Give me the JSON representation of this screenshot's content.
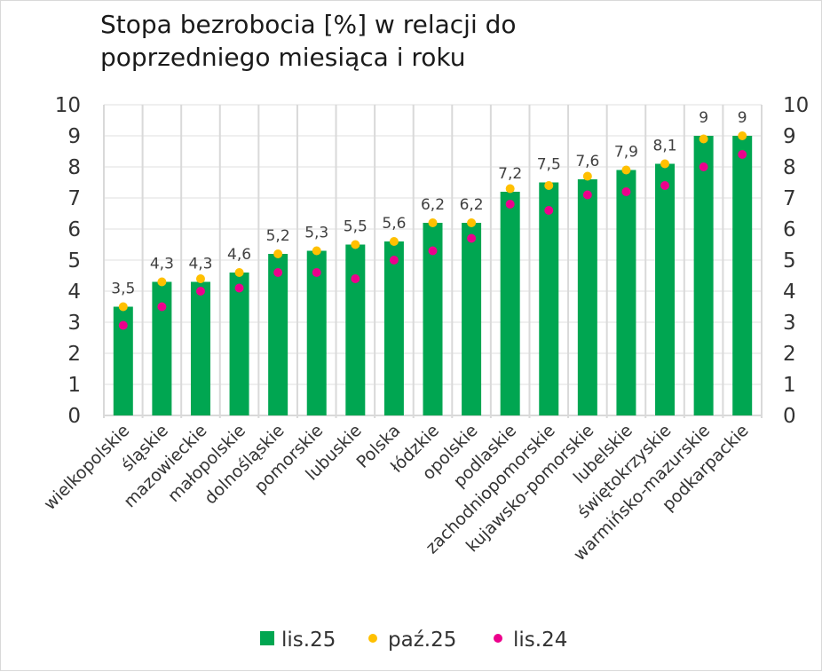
{
  "chart_data": {
    "type": "bar",
    "title": "Stopa bezrobocia [%] w relacji do poprzedniego miesiąca i roku",
    "title_lines": [
      "Stopa bezrobocia [%] w relacji do",
      "poprzedniego miesiąca i roku"
    ],
    "categories": [
      "wielkopolskie",
      "śląskie",
      "mazowieckie",
      "małopolskie",
      "dolnośląskie",
      "pomorskie",
      "lubuskie",
      "Polska",
      "łódzkie",
      "opolskie",
      "podlaskie",
      "zachodniopomorskie",
      "kujawsko-pomorskie",
      "lubelskie",
      "świętokrzyskie",
      "warmińsko-mazurskie",
      "podkarpackie"
    ],
    "series": [
      {
        "name": "lis.25",
        "kind": "bar",
        "color": "#00a651",
        "values": [
          3.5,
          4.3,
          4.3,
          4.6,
          5.2,
          5.3,
          5.5,
          5.6,
          6.2,
          6.2,
          7.2,
          7.5,
          7.6,
          7.9,
          8.1,
          9,
          9
        ],
        "data_labels": [
          "3,5",
          "4,3",
          "4,3",
          "4,6",
          "5,2",
          "5,3",
          "5,5",
          "5,6",
          "6,2",
          "6,2",
          "7,2",
          "7,5",
          "7,6",
          "7,9",
          "8,1",
          "9",
          "9"
        ]
      },
      {
        "name": "paź.25",
        "kind": "dot",
        "color": "#ffc000",
        "values": [
          3.5,
          4.3,
          4.4,
          4.6,
          5.2,
          5.3,
          5.5,
          5.6,
          6.2,
          6.2,
          7.3,
          7.4,
          7.7,
          7.9,
          8.1,
          8.9,
          9.0
        ]
      },
      {
        "name": "lis.24",
        "kind": "dot",
        "color": "#ec008c",
        "values": [
          2.9,
          3.5,
          4.0,
          4.1,
          4.6,
          4.6,
          4.4,
          5.0,
          5.3,
          5.7,
          6.8,
          6.6,
          7.1,
          7.2,
          7.4,
          8.0,
          8.4
        ]
      }
    ],
    "ylim": [
      0,
      10
    ],
    "yticks": [
      "0",
      "1",
      "2",
      "3",
      "4",
      "5",
      "6",
      "7",
      "8",
      "9",
      "10"
    ],
    "secondary_y_axis": true,
    "grid": true,
    "legend_position": "bottom"
  }
}
